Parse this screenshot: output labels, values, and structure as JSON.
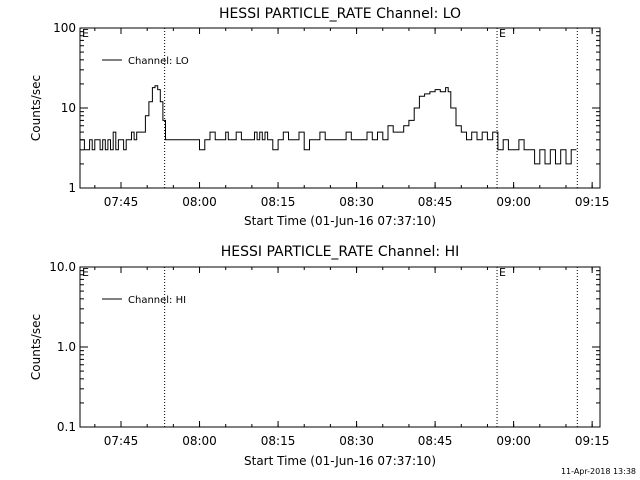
{
  "footer": "11-Apr-2018 13:38",
  "chart_data": [
    {
      "type": "line",
      "title": "HESSI PARTICLE_RATE Channel: LO",
      "xlabel": "Start Time (01-Jun-16 07:37:10)",
      "ylabel": "Counts/sec",
      "yscale": "log",
      "ylim": [
        1,
        100
      ],
      "yticks": [
        "1",
        "10",
        "100"
      ],
      "xlim": [
        "07:37:10",
        "09:16:30"
      ],
      "xticks": [
        "07:45",
        "08:00",
        "08:15",
        "08:30",
        "08:45",
        "09:00",
        "09:15"
      ],
      "legend": "top-left",
      "grid": false,
      "markers": [
        {
          "x": "07:53:20",
          "label": ""
        },
        {
          "x": "08:56:50",
          "label": "E"
        },
        {
          "x": "09:12:10",
          "label": ""
        }
      ],
      "corner_label": "E",
      "series": [
        {
          "name": "Channel: LO",
          "color": "#000000",
          "x": [
            "07:37:10",
            "07:38:00",
            "07:39:00",
            "07:39:30",
            "07:40:00",
            "07:41:00",
            "07:41:30",
            "07:42:00",
            "07:42:30",
            "07:43:00",
            "07:43:30",
            "07:44:00",
            "07:44:30",
            "07:45:00",
            "07:45:30",
            "07:46:00",
            "07:47:00",
            "07:47:30",
            "07:48:00",
            "07:49:00",
            "07:49:40",
            "07:50:20",
            "07:51:00",
            "07:51:30",
            "07:52:00",
            "07:52:30",
            "07:53:00",
            "07:53:30",
            "07:54:00",
            "07:55:00",
            "07:56:00",
            "07:57:00",
            "07:58:00",
            "07:59:00",
            "08:00:00",
            "08:00:30",
            "08:01:00",
            "08:01:30",
            "08:02:00",
            "08:03:00",
            "08:04:00",
            "08:05:00",
            "08:05:30",
            "08:06:00",
            "08:07:00",
            "08:08:00",
            "08:09:00",
            "08:10:00",
            "08:10:30",
            "08:11:00",
            "08:11:30",
            "08:12:00",
            "08:12:30",
            "08:13:00",
            "08:14:00",
            "08:15:00",
            "08:16:00",
            "08:17:00",
            "08:18:00",
            "08:19:00",
            "08:20:00",
            "08:21:00",
            "08:22:00",
            "08:23:00",
            "08:24:00",
            "08:25:00",
            "08:26:00",
            "08:27:00",
            "08:28:00",
            "08:29:00",
            "08:30:00",
            "08:31:00",
            "08:32:00",
            "08:33:00",
            "08:34:00",
            "08:35:00",
            "08:36:00",
            "08:37:00",
            "08:38:00",
            "08:39:00",
            "08:40:00",
            "08:41:00",
            "08:42:00",
            "08:43:00",
            "08:44:00",
            "08:45:00",
            "08:46:00",
            "08:47:00",
            "08:47:30",
            "08:48:00",
            "08:49:00",
            "08:50:00",
            "08:51:00",
            "08:52:00",
            "08:53:00",
            "08:54:00",
            "08:55:00",
            "08:56:00",
            "08:57:00",
            "08:58:00",
            "08:59:00",
            "09:00:00",
            "09:01:00",
            "09:02:00",
            "09:03:00",
            "09:04:00",
            "09:05:00",
            "09:06:00",
            "09:07:00",
            "09:08:00",
            "09:09:00",
            "09:10:00",
            "09:11:00",
            "09:12:00"
          ],
          "y": [
            4,
            3,
            4,
            3,
            4,
            3,
            4,
            3,
            4,
            3,
            5,
            3,
            4,
            4,
            3,
            4,
            5,
            4,
            5,
            5,
            8,
            12,
            18,
            19,
            17,
            12,
            7,
            4,
            4,
            4,
            4,
            4,
            4,
            4,
            3,
            3,
            4,
            4,
            5,
            4,
            4,
            5,
            4,
            4,
            5,
            4,
            4,
            4,
            5,
            4,
            5,
            4,
            5,
            4,
            3,
            4,
            5,
            4,
            4,
            5,
            3,
            4,
            4,
            5,
            4,
            4,
            4,
            4,
            5,
            4,
            4,
            4,
            5,
            4,
            5,
            4,
            6,
            5,
            5,
            6,
            7,
            10,
            14,
            15,
            16,
            17,
            16,
            18,
            16,
            10,
            6,
            5,
            4,
            5,
            4,
            5,
            4,
            5,
            3,
            4,
            3,
            3,
            4,
            3,
            3,
            2,
            3,
            2,
            3,
            2,
            3,
            2,
            3,
            3
          ]
        }
      ]
    },
    {
      "type": "line",
      "title": "HESSI PARTICLE_RATE Channel: HI",
      "xlabel": "Start Time (01-Jun-16 07:37:10)",
      "ylabel": "Counts/sec",
      "yscale": "log",
      "ylim": [
        0.1,
        10
      ],
      "yticks": [
        "0.1",
        "1.0",
        "10.0"
      ],
      "xlim": [
        "07:37:10",
        "09:16:30"
      ],
      "xticks": [
        "07:45",
        "08:00",
        "08:15",
        "08:30",
        "08:45",
        "09:00",
        "09:15"
      ],
      "legend": "top-left",
      "grid": false,
      "markers": [
        {
          "x": "07:53:20",
          "label": ""
        },
        {
          "x": "08:56:50",
          "label": "E"
        },
        {
          "x": "09:12:10",
          "label": ""
        }
      ],
      "corner_label": "E",
      "series": [
        {
          "name": "Channel: HI",
          "color": "#000000",
          "x": [],
          "y": []
        }
      ]
    }
  ]
}
